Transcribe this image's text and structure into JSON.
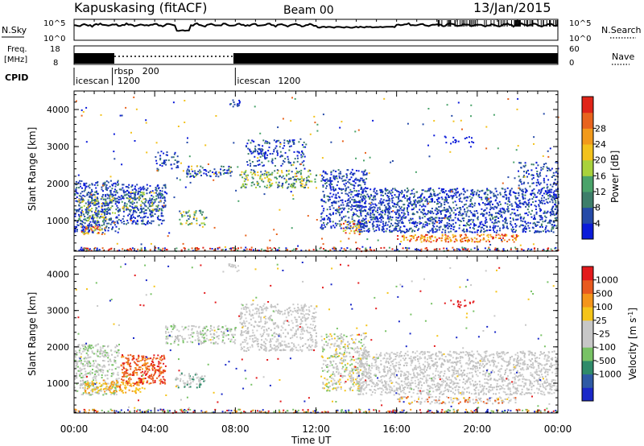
{
  "header": {
    "station": "Kapuskasing (fitACF)",
    "beam": "Beam 00",
    "date": "13/Jan/2015"
  },
  "side_labels": {
    "nsky": "N.Sky",
    "freq_line1": "Freq.",
    "freq_line2": "[MHz]",
    "cpid": "CPID",
    "nsearch": "N.Search",
    "nave": "Nave"
  },
  "left_ticks": {
    "nsky_top": "10^5",
    "nsky_bottom": "10^0",
    "freq_top": "18",
    "freq_bottom": "8"
  },
  "right_ticks": {
    "nsearch_top": "10^5",
    "nsearch_bottom": "10^0",
    "nave_top": "60",
    "nave_bottom": "0"
  },
  "cpid_segments": [
    {
      "label": "icescan",
      "label2": "1200",
      "start_hour": 0
    },
    {
      "label": "rbsp",
      "label2": "200",
      "start_hour": 1.9
    },
    {
      "label": "icescan",
      "label2": "1200",
      "start_hour": 8
    }
  ],
  "colors": {
    "power_scale": [
      "#0b1bd9",
      "#254aa8",
      "#3d7e6a",
      "#4aa36a",
      "#a9d23c",
      "#f3c21c",
      "#f29a1b",
      "#e8631d",
      "#e02418"
    ],
    "velocity_scale": [
      "#e31a1c",
      "#e85a1f",
      "#f4951a",
      "#f5c419",
      "#c7c7c7",
      "#c7c7c7",
      "#78c265",
      "#2f8b6a",
      "#2e5aa5",
      "#1a28c8"
    ]
  },
  "chart_data": [
    {
      "type": "heatmap",
      "name": "power",
      "xlabel": "",
      "ylabel": "Slant Range [km]",
      "xlim": [
        0,
        24
      ],
      "ylim": [
        180,
        4500
      ],
      "yticks": [
        "1000",
        "2000",
        "3000",
        "4000"
      ],
      "colorbar": {
        "label": "Power [dB]",
        "range": [
          0,
          32
        ],
        "ticks": [
          "4",
          "8",
          "12",
          "16",
          "20",
          "24",
          "28"
        ]
      }
    },
    {
      "type": "heatmap",
      "name": "velocity",
      "xlabel": "Time UT",
      "ylabel": "Slant Range [km]",
      "xlim": [
        0,
        24
      ],
      "ylim": [
        180,
        4500
      ],
      "xticks": [
        "00:00",
        "04:00",
        "08:00",
        "12:00",
        "16:00",
        "20:00",
        "00:00"
      ],
      "yticks": [
        "1000",
        "2000",
        "3000",
        "4000"
      ],
      "colorbar": {
        "label": "Velocity [m s^-1]",
        "ticks": [
          "1000",
          "500",
          "100",
          "25",
          "-25",
          "-100",
          "-500",
          "-1000"
        ]
      }
    }
  ]
}
